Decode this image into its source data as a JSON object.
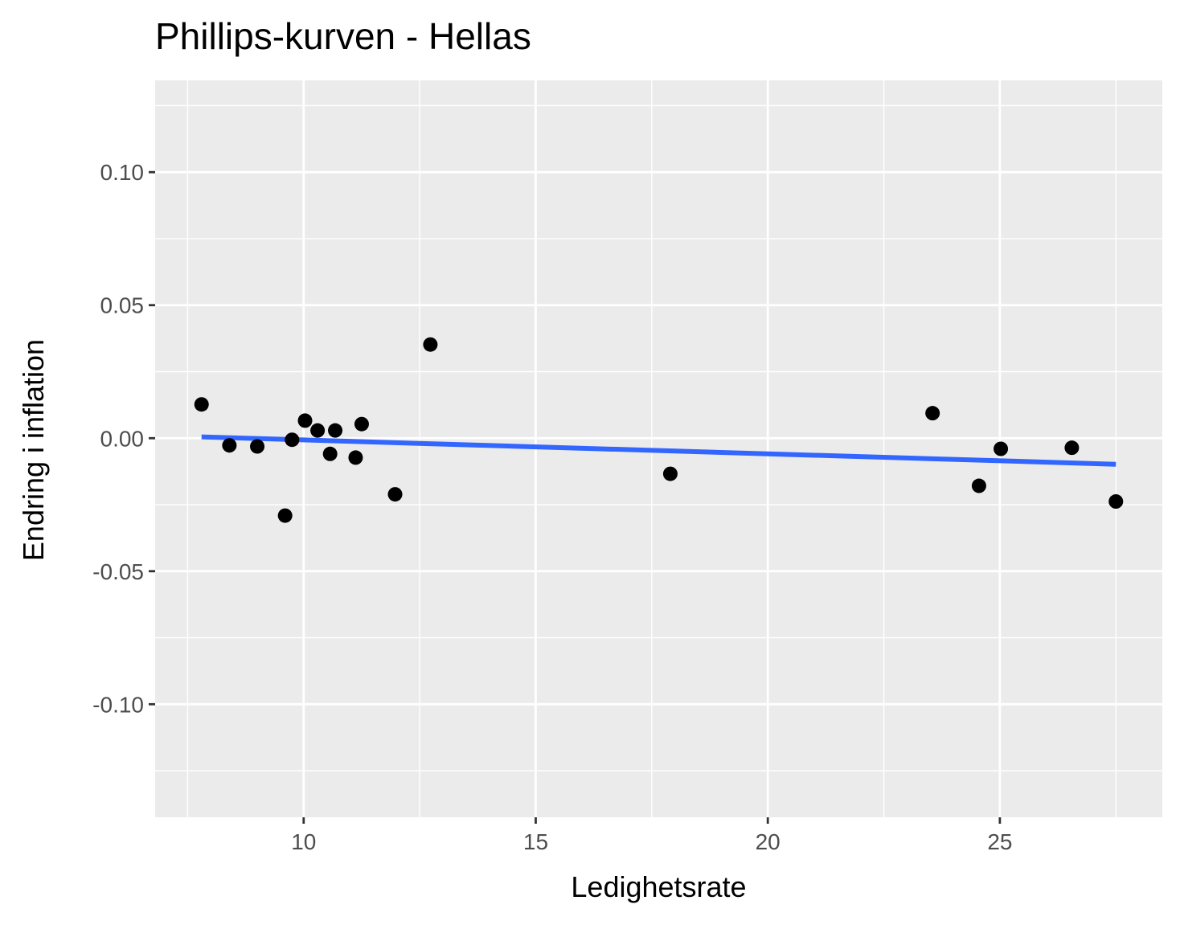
{
  "chart_data": {
    "type": "scatter",
    "title": "Phillips-kurven - Hellas",
    "xlabel": "Ledighetsrate",
    "ylabel": "Endring i inflation",
    "xlim": [
      6.8,
      28.5
    ],
    "ylim": [
      -0.1425,
      0.1345
    ],
    "x_ticks": [
      10,
      15,
      20,
      25
    ],
    "x_tick_labels": [
      "10",
      "15",
      "20",
      "25"
    ],
    "x_minor_ticks": [
      7.5,
      12.5,
      17.5,
      22.5,
      27.5
    ],
    "y_ticks": [
      -0.1,
      -0.05,
      0.0,
      0.05,
      0.1
    ],
    "y_tick_labels": [
      "-0.10",
      "-0.05",
      "0.00",
      "0.05",
      "0.10"
    ],
    "y_minor_ticks": [
      -0.125,
      -0.075,
      -0.025,
      0.025,
      0.075,
      0.125
    ],
    "grid": true,
    "background": "#ebebeb",
    "point_color": "#000000",
    "points": [
      {
        "x": 7.8,
        "y": 0.0127
      },
      {
        "x": 8.4,
        "y": -0.0027
      },
      {
        "x": 9.0,
        "y": -0.0031
      },
      {
        "x": 9.6,
        "y": -0.0291
      },
      {
        "x": 9.75,
        "y": -0.0006
      },
      {
        "x": 10.03,
        "y": 0.0066
      },
      {
        "x": 10.3,
        "y": 0.0029
      },
      {
        "x": 10.57,
        "y": -0.0059
      },
      {
        "x": 10.68,
        "y": 0.0029
      },
      {
        "x": 11.12,
        "y": -0.0073
      },
      {
        "x": 11.25,
        "y": 0.0053
      },
      {
        "x": 11.97,
        "y": -0.0211
      },
      {
        "x": 12.73,
        "y": 0.0352
      },
      {
        "x": 17.9,
        "y": -0.0134
      },
      {
        "x": 23.55,
        "y": 0.0094
      },
      {
        "x": 24.55,
        "y": -0.0179
      },
      {
        "x": 25.02,
        "y": -0.004
      },
      {
        "x": 26.55,
        "y": -0.0036
      },
      {
        "x": 27.5,
        "y": -0.0238
      }
    ],
    "fit_line": {
      "method": "lm",
      "color": "#3366ff",
      "x": [
        7.8,
        27.5
      ],
      "y": [
        0.0005,
        -0.0098
      ]
    }
  }
}
